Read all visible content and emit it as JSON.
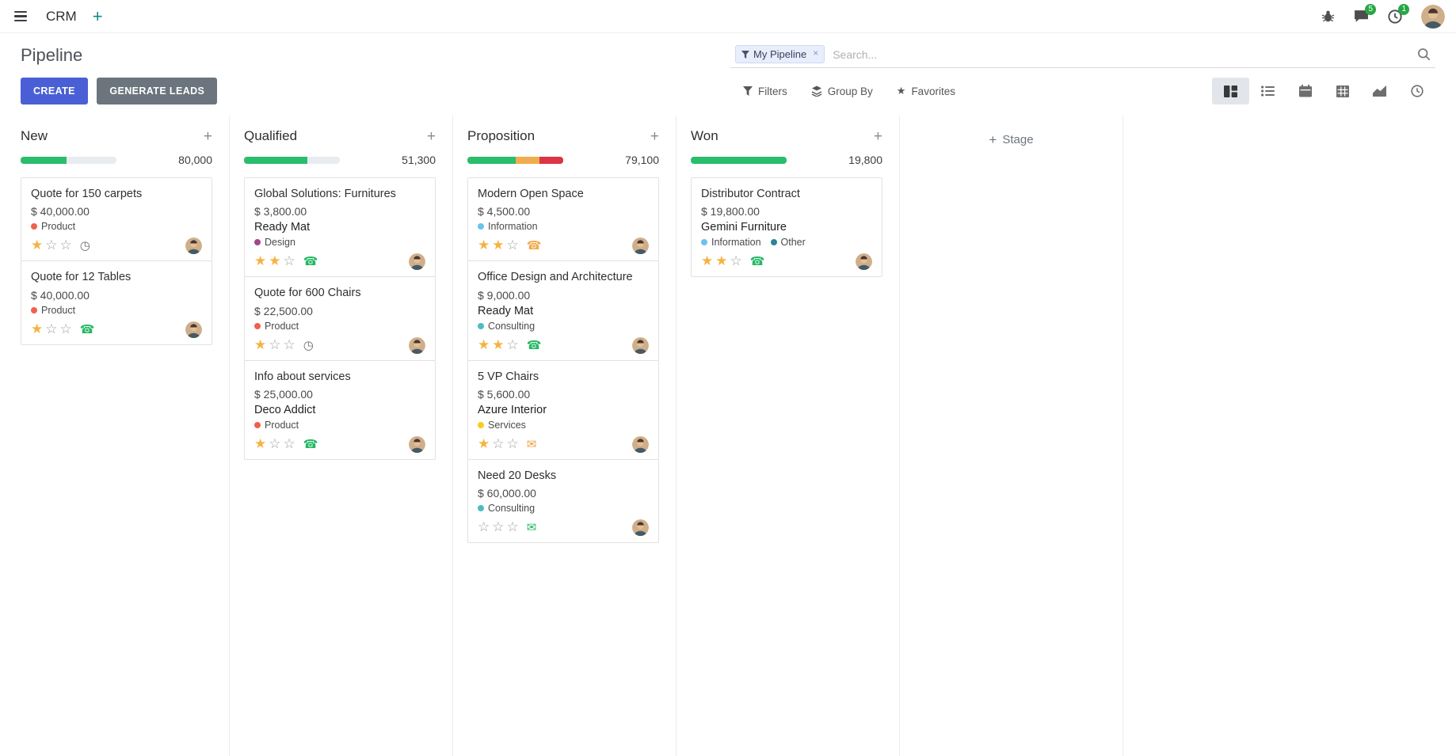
{
  "navbar": {
    "app_name": "CRM",
    "message_badge": "5",
    "activity_badge": "1"
  },
  "control_panel": {
    "title": "Pipeline",
    "create_label": "CREATE",
    "generate_label": "GENERATE LEADS",
    "search": {
      "facet_label": "My Pipeline",
      "placeholder": "Search..."
    },
    "filters_label": "Filters",
    "group_by_label": "Group By",
    "favorites_label": "Favorites",
    "view_switcher": {
      "views": [
        "kanban",
        "list",
        "calendar",
        "pivot",
        "graph",
        "activity"
      ],
      "active": "kanban"
    }
  },
  "icons": {
    "plus": "+",
    "close": "×",
    "star_filled": "★",
    "star_empty": "☆",
    "phone": "☎",
    "envelope": "✉",
    "clock": "◷"
  },
  "board": {
    "add_stage_label": "Stage",
    "columns": [
      {
        "name": "New",
        "total": "80,000",
        "progress": [
          {
            "color": "#2bbd6e",
            "pct": 48
          }
        ],
        "cards": [
          {
            "title": "Quote for 150 carpets",
            "amount": "$ 40,000.00",
            "partner": null,
            "tags": [
              {
                "label": "Product",
                "color": "#f06050"
              }
            ],
            "stars": 1,
            "activity": {
              "icon": "clock",
              "color": "#6d6d6d"
            }
          },
          {
            "title": "Quote for 12 Tables",
            "amount": "$ 40,000.00",
            "partner": null,
            "tags": [
              {
                "label": "Product",
                "color": "#f06050"
              }
            ],
            "stars": 1,
            "activity": {
              "icon": "phone",
              "color": "#25b865"
            }
          }
        ]
      },
      {
        "name": "Qualified",
        "total": "51,300",
        "progress": [
          {
            "color": "#2bbd6e",
            "pct": 66
          }
        ],
        "cards": [
          {
            "title": "Global Solutions: Furnitures",
            "amount": "$ 3,800.00",
            "partner": "Ready Mat",
            "tags": [
              {
                "label": "Design",
                "color": "#a24689"
              }
            ],
            "stars": 2,
            "activity": {
              "icon": "phone",
              "color": "#25b865"
            }
          },
          {
            "title": "Quote for 600 Chairs",
            "amount": "$ 22,500.00",
            "partner": null,
            "tags": [
              {
                "label": "Product",
                "color": "#f06050"
              }
            ],
            "stars": 1,
            "activity": {
              "icon": "clock",
              "color": "#6d6d6d"
            }
          },
          {
            "title": "Info about services",
            "amount": "$ 25,000.00",
            "partner": "Deco Addict",
            "tags": [
              {
                "label": "Product",
                "color": "#f06050"
              }
            ],
            "stars": 1,
            "activity": {
              "icon": "phone",
              "color": "#25b865"
            }
          }
        ]
      },
      {
        "name": "Proposition",
        "total": "79,100",
        "progress": [
          {
            "color": "#2bbd6e",
            "pct": 50
          },
          {
            "color": "#f0ad4e",
            "pct": 25
          },
          {
            "color": "#dc3545",
            "pct": 25
          }
        ],
        "cards": [
          {
            "title": "Modern Open Space",
            "amount": "$ 4,500.00",
            "partner": null,
            "tags": [
              {
                "label": "Information",
                "color": "#6cc1ed"
              }
            ],
            "stars": 2,
            "activity": {
              "icon": "phone",
              "color": "#f0ad4e"
            }
          },
          {
            "title": "Office Design and Architecture",
            "amount": "$ 9,000.00",
            "partner": "Ready Mat",
            "tags": [
              {
                "label": "Consulting",
                "color": "#4bbcc4"
              }
            ],
            "stars": 2,
            "activity": {
              "icon": "phone",
              "color": "#25b865"
            }
          },
          {
            "title": "5 VP Chairs",
            "amount": "$ 5,600.00",
            "partner": "Azure Interior",
            "tags": [
              {
                "label": "Services",
                "color": "#f7cd1f"
              }
            ],
            "stars": 1,
            "activity": {
              "icon": "envelope",
              "color": "#e9a23b"
            }
          },
          {
            "title": "Need 20 Desks",
            "amount": "$ 60,000.00",
            "partner": null,
            "tags": [
              {
                "label": "Consulting",
                "color": "#4bbcc4"
              }
            ],
            "stars": 0,
            "activity": {
              "icon": "envelope",
              "color": "#25b865"
            }
          }
        ]
      },
      {
        "name": "Won",
        "total": "19,800",
        "progress": [
          {
            "color": "#2bbd6e",
            "pct": 100
          }
        ],
        "cards": [
          {
            "title": "Distributor Contract",
            "amount": "$ 19,800.00",
            "partner": "Gemini Furniture",
            "tags": [
              {
                "label": "Information",
                "color": "#6cc1ed"
              },
              {
                "label": "Other",
                "color": "#2c8397"
              }
            ],
            "stars": 2,
            "activity": {
              "icon": "phone",
              "color": "#25b865"
            }
          }
        ]
      }
    ]
  }
}
